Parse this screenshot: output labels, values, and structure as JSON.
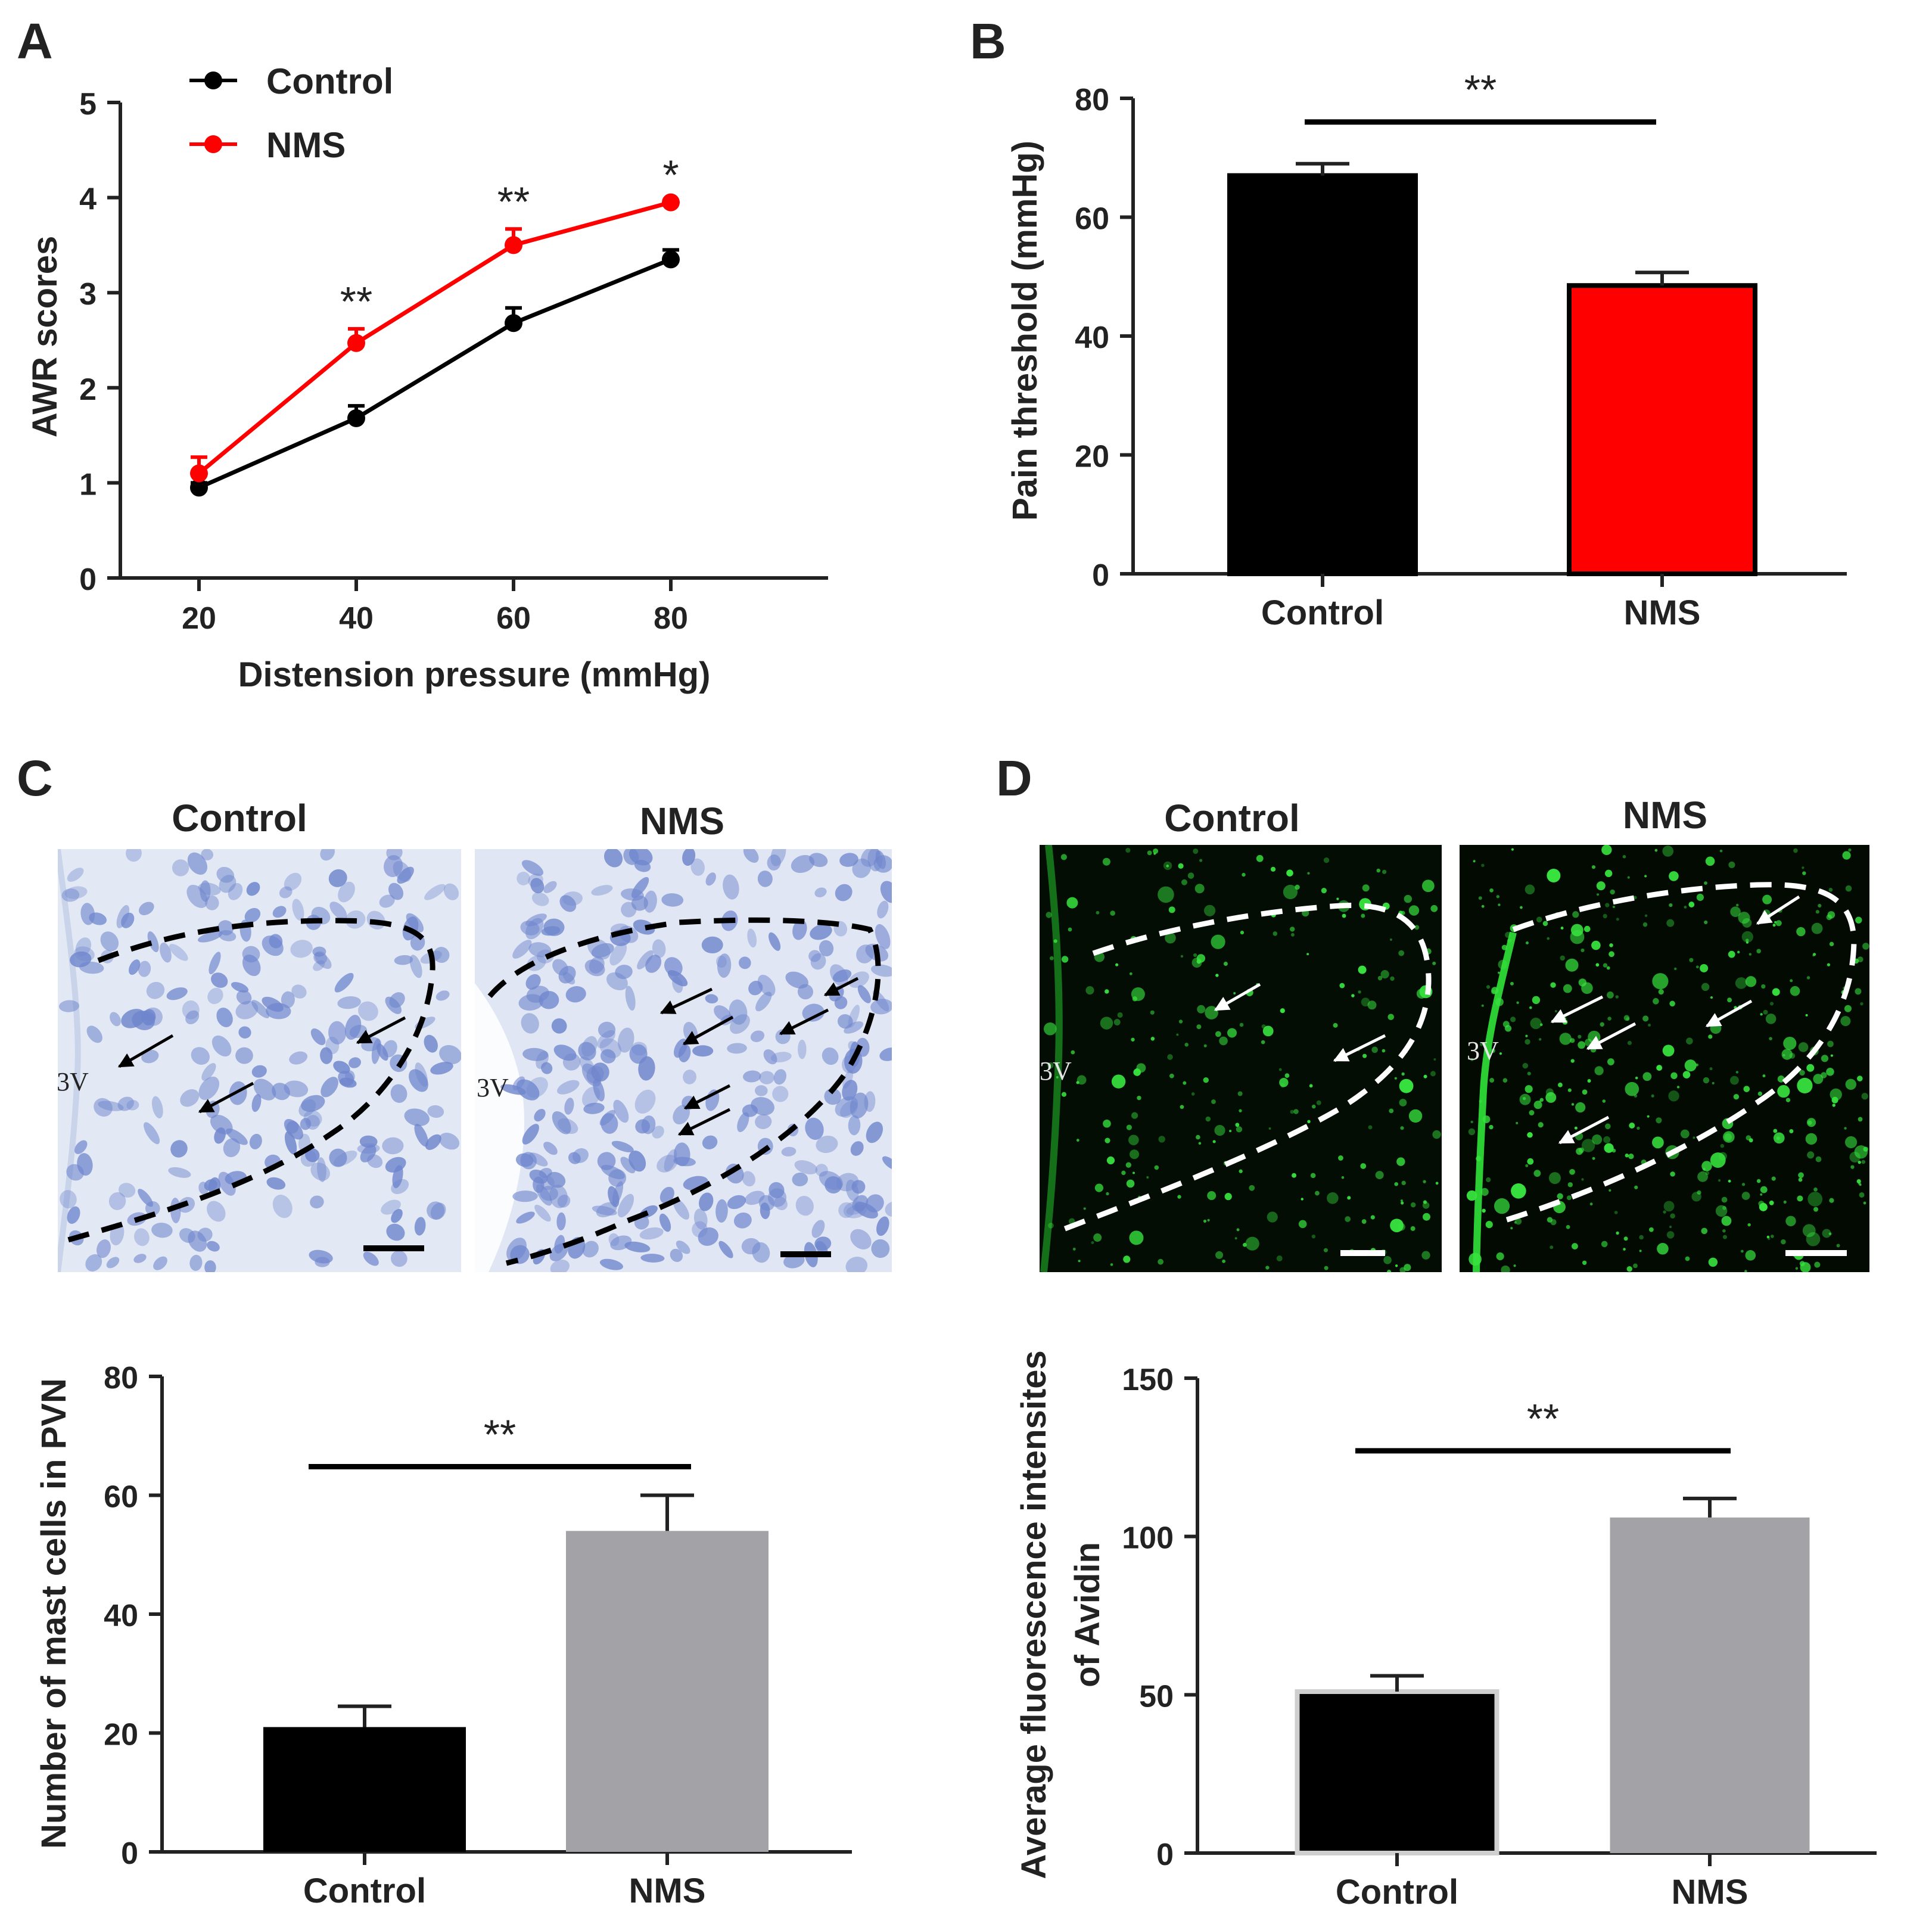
{
  "panel_letters": {
    "a": "A",
    "b": "B",
    "c": "C",
    "d": "D"
  },
  "colors": {
    "control": "#000000",
    "nms_red": "#ff0000",
    "nms_gray": "#a3a3a7",
    "stain_bg": "#e3e9f4",
    "stain_cell": "#6f86cd",
    "fluor_bg": "#020a02",
    "fluor_cell": "#37e23e"
  },
  "micrographs": {
    "c": {
      "control_label": "Control",
      "nms_label": "NMS",
      "region_label": "3V",
      "style": "toluidine-blue-stain"
    },
    "d": {
      "control_label": "Control",
      "nms_label": "NMS",
      "region_label": "3V",
      "style": "avidin-fluorescence"
    }
  },
  "chart_data": [
    {
      "id": "A",
      "type": "line",
      "title": "",
      "xlabel": "Distension pressure (mmHg)",
      "ylabel": "AWR scores",
      "x": [
        20,
        40,
        60,
        80
      ],
      "xlim": [
        10,
        100
      ],
      "ylim": [
        0,
        5
      ],
      "yticks": [
        0,
        1,
        2,
        3,
        4,
        5
      ],
      "series": [
        {
          "name": "Control",
          "color": "#000000",
          "values": [
            0.95,
            1.68,
            2.68,
            3.35
          ],
          "errors": [
            0.05,
            0.13,
            0.16,
            0.1
          ]
        },
        {
          "name": "NMS",
          "color": "#ff0000",
          "values": [
            1.1,
            2.47,
            3.5,
            3.95
          ],
          "errors": [
            0.17,
            0.15,
            0.17,
            0.0
          ]
        }
      ],
      "significance": [
        {
          "x": 40,
          "label": "**"
        },
        {
          "x": 60,
          "label": "**"
        },
        {
          "x": 80,
          "label": "*"
        }
      ],
      "legend": "top-left"
    },
    {
      "id": "B",
      "type": "bar",
      "ylabel": "Pain threshold (mmHg)",
      "categories": [
        "Control",
        "NMS"
      ],
      "values": [
        67,
        48.5
      ],
      "errors": [
        2,
        2.2
      ],
      "colors": [
        "#000000",
        "#ff0000"
      ],
      "ylim": [
        0,
        80
      ],
      "yticks": [
        0,
        20,
        40,
        60,
        80
      ],
      "significance": {
        "label": "**"
      }
    },
    {
      "id": "C",
      "type": "bar",
      "ylabel": "Number of mast cells in PVN",
      "categories": [
        "Control",
        "NMS"
      ],
      "values": [
        21,
        54
      ],
      "errors": [
        3.5,
        6
      ],
      "colors": [
        "#000000",
        "#a3a3a7"
      ],
      "ylim": [
        0,
        80
      ],
      "yticks": [
        0,
        20,
        40,
        60,
        80
      ],
      "significance": {
        "label": "**"
      }
    },
    {
      "id": "D",
      "type": "bar",
      "ylabel_lines": [
        "Average fluorescence intensites",
        "of Avidin"
      ],
      "categories": [
        "Control",
        "NMS"
      ],
      "values": [
        51,
        106
      ],
      "errors": [
        5,
        6
      ],
      "colors": [
        "#000000",
        "#a3a3a7"
      ],
      "ylim": [
        0,
        150
      ],
      "yticks": [
        0,
        50,
        100,
        150
      ],
      "significance": {
        "label": "**"
      }
    }
  ]
}
